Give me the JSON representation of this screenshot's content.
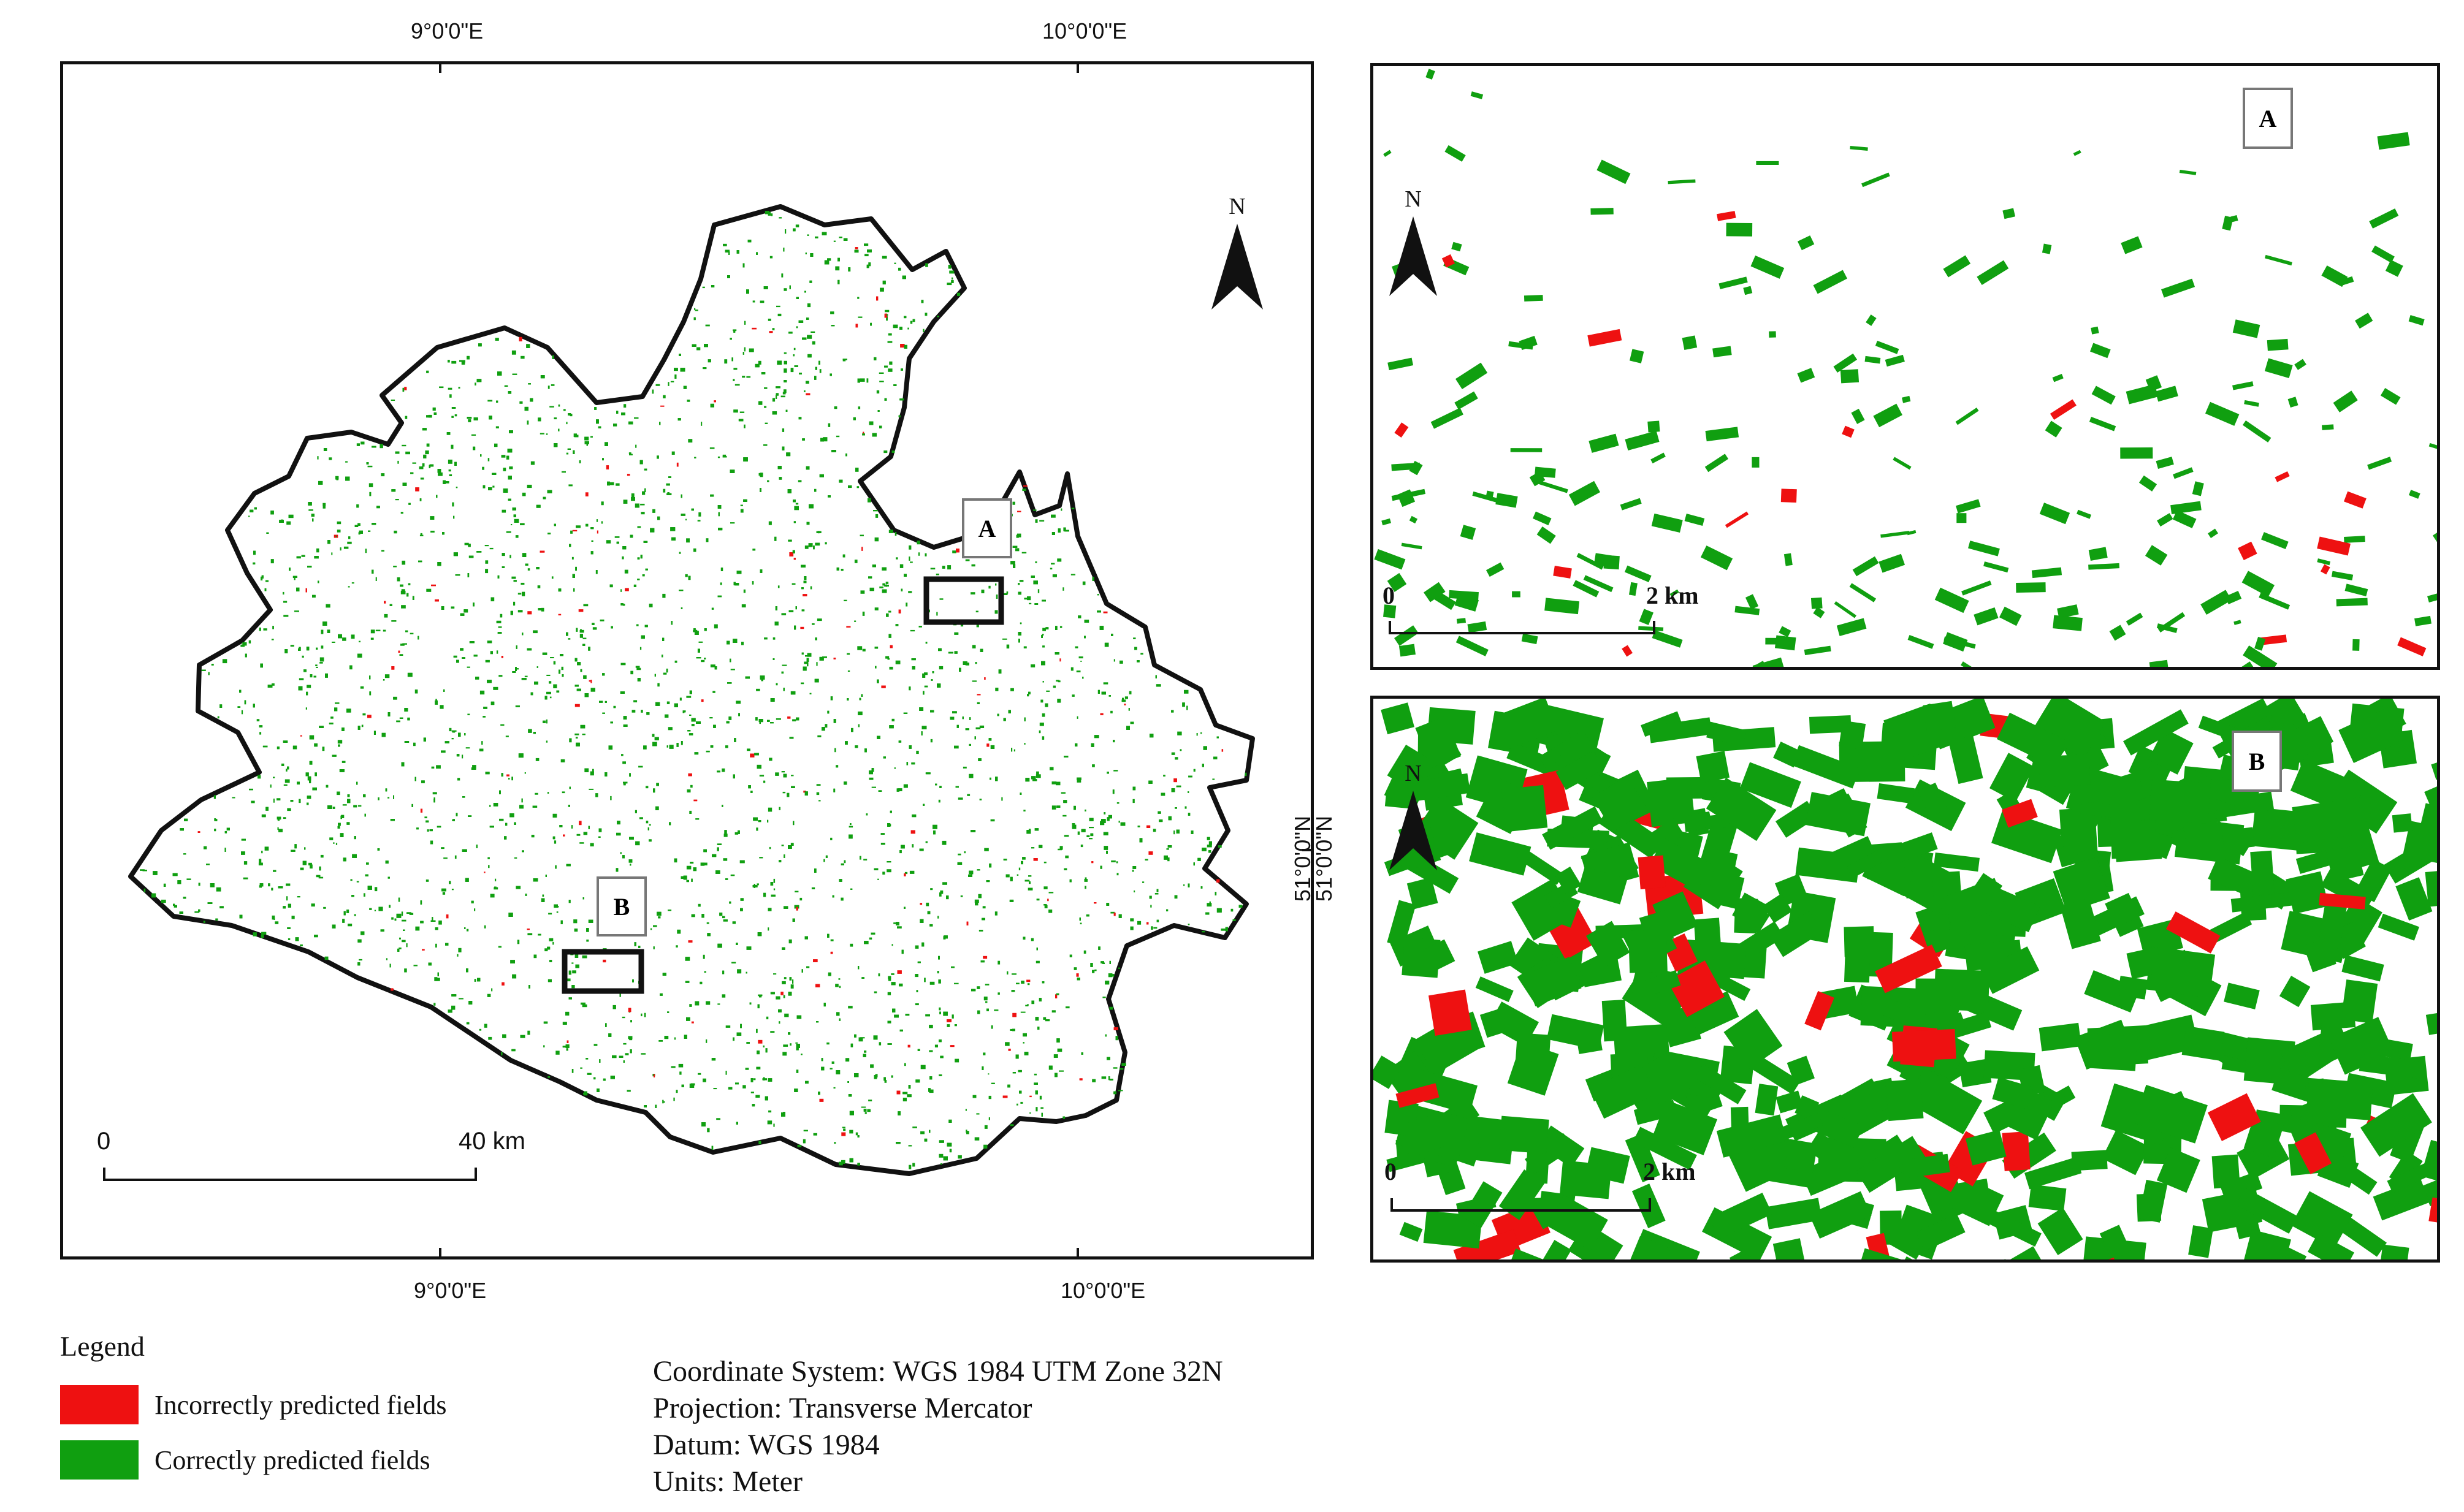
{
  "colors": {
    "incorrect": "#ee1111",
    "correct": "#109f10",
    "frame": "#111111"
  },
  "main_map": {
    "top_ticks": [
      "9°0'0\"E",
      "10°0'0\"E"
    ],
    "bottom_ticks": [
      "9°0'0\"E",
      "10°0'0\"E"
    ],
    "right_tick": "51°0'0\"N",
    "north": "N",
    "scale_start": "0",
    "scale_end": "40 km",
    "inset_labels": [
      "A",
      "B"
    ]
  },
  "inset_a": {
    "label": "A",
    "north": "N",
    "scale_start": "0",
    "scale_end": "2 km"
  },
  "inset_b": {
    "label": "B",
    "north": "N",
    "left_tick": "51°0'0\"N",
    "scale_start": "0",
    "scale_end": "2 km"
  },
  "legend": {
    "title": "Legend",
    "items": [
      {
        "label": "Incorrectly predicted fields",
        "color": "#ee1111"
      },
      {
        "label": "Correctly predicted fields",
        "color": "#109f10"
      }
    ]
  },
  "info": {
    "lines": [
      "Coordinate System: WGS 1984 UTM Zone 32N",
      "Projection: Transverse Mercator",
      "Datum: WGS 1984",
      "Units: Meter"
    ]
  }
}
